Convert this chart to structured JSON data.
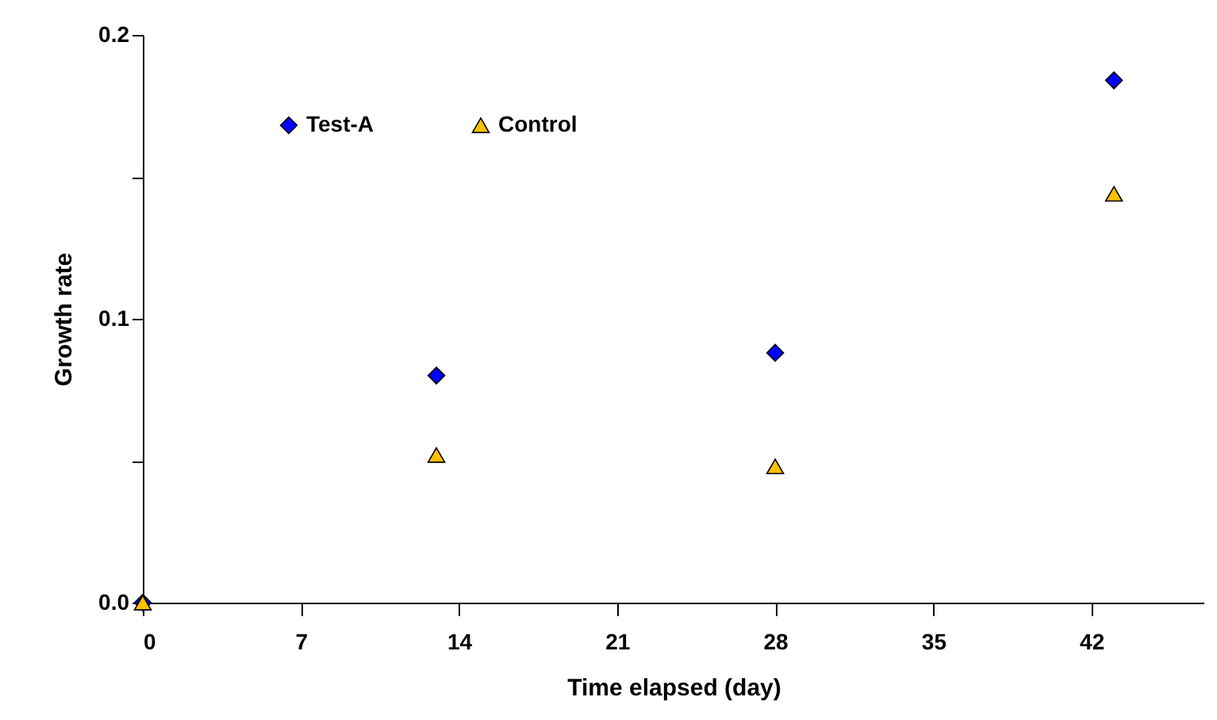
{
  "chart_data": {
    "type": "scatter",
    "xlabel": "Time elapsed (day)",
    "ylabel": "Growth rate",
    "x": [
      0,
      13,
      28,
      43
    ],
    "series": [
      {
        "name": "Test-A",
        "color": "#0000ff",
        "marker": "diamond",
        "values": [
          0,
          0.08,
          0.088,
          0.184
        ]
      },
      {
        "name": "Control",
        "color": "#ffc000",
        "marker": "triangle",
        "values": [
          0,
          0.052,
          0.048,
          0.144
        ]
      }
    ],
    "xlim": [
      0,
      47
    ],
    "xticks": [
      0,
      7,
      14,
      21,
      28,
      35,
      42
    ],
    "ylim": [
      0,
      0.2
    ],
    "yticks": [
      {
        "value": 0,
        "label": "0.0"
      },
      {
        "value": 0.05,
        "label": null
      },
      0.1,
      {
        "value": 0.15,
        "label": null
      },
      0.2
    ],
    "grid": false,
    "legend": "top left"
  }
}
